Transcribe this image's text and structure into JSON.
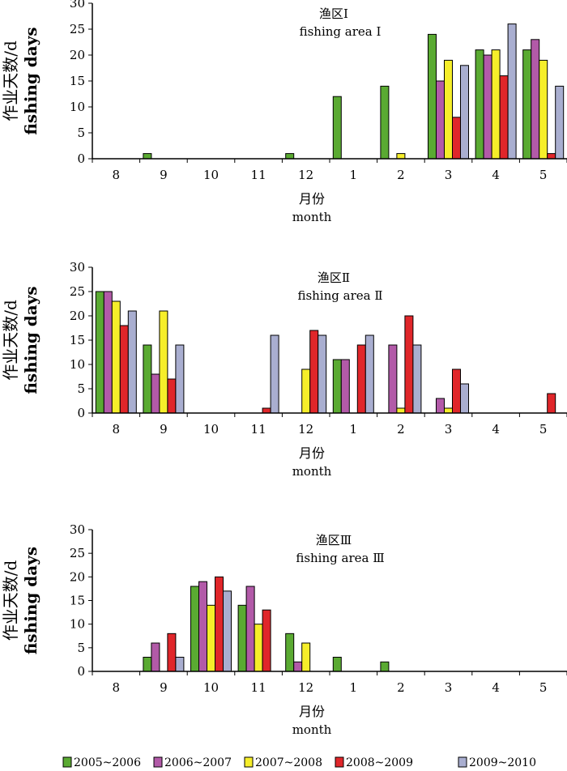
{
  "chart_data": [
    {
      "type": "bar",
      "title": "渔区Ⅰ",
      "subtitle": "fishing area Ⅰ",
      "ylabel_cn": "作业天数/d",
      "ylabel_en": "fishing days",
      "xlabel_cn": "月份",
      "xlabel_en": "month",
      "ylim": [
        0,
        30
      ],
      "yticks": [
        0,
        5,
        10,
        15,
        20,
        25,
        30
      ],
      "categories": [
        "8",
        "9",
        "10",
        "11",
        "12",
        "1",
        "2",
        "3",
        "4",
        "5"
      ],
      "series": [
        {
          "name": "2005~2006",
          "values": [
            0,
            1,
            0,
            0,
            1,
            12,
            14,
            24,
            21,
            21
          ]
        },
        {
          "name": "2006~2007",
          "values": [
            0,
            0,
            0,
            0,
            0,
            0,
            0,
            15,
            20,
            23
          ]
        },
        {
          "name": "2007~2008",
          "values": [
            0,
            0,
            0,
            0,
            0,
            0,
            1,
            19,
            21,
            19
          ]
        },
        {
          "name": "2008~2009",
          "values": [
            0,
            0,
            0,
            0,
            0,
            0,
            0,
            8,
            16,
            1
          ]
        },
        {
          "name": "2009~2010",
          "values": [
            0,
            0,
            0,
            0,
            0,
            0,
            0,
            18,
            26,
            14
          ]
        }
      ]
    },
    {
      "type": "bar",
      "title": "渔区Ⅱ",
      "subtitle": "fishing area Ⅱ",
      "ylabel_cn": "作业天数/d",
      "ylabel_en": "fishing days",
      "xlabel_cn": "月份",
      "xlabel_en": "month",
      "ylim": [
        0,
        30
      ],
      "yticks": [
        0,
        5,
        10,
        15,
        20,
        25,
        30
      ],
      "categories": [
        "8",
        "9",
        "10",
        "11",
        "12",
        "1",
        "2",
        "3",
        "4",
        "5"
      ],
      "series": [
        {
          "name": "2005~2006",
          "values": [
            25,
            14,
            0,
            0,
            0,
            11,
            0,
            0,
            0,
            0
          ]
        },
        {
          "name": "2006~2007",
          "values": [
            25,
            8,
            0,
            0,
            0,
            11,
            14,
            3,
            0,
            0
          ]
        },
        {
          "name": "2007~2008",
          "values": [
            23,
            21,
            0,
            0,
            9,
            0,
            1,
            1,
            0,
            0
          ]
        },
        {
          "name": "2008~2009",
          "values": [
            18,
            7,
            0,
            1,
            17,
            14,
            20,
            9,
            0,
            4
          ]
        },
        {
          "name": "2009~2010",
          "values": [
            21,
            14,
            0,
            16,
            16,
            16,
            14,
            6,
            0,
            0
          ]
        }
      ]
    },
    {
      "type": "bar",
      "title": "渔区Ⅲ",
      "subtitle": "fishing area Ⅲ",
      "ylabel_cn": "作业天数/d",
      "ylabel_en": "fishing days",
      "xlabel_cn": "月份",
      "xlabel_en": "month",
      "ylim": [
        0,
        30
      ],
      "yticks": [
        0,
        5,
        10,
        15,
        20,
        25,
        30
      ],
      "categories": [
        "8",
        "9",
        "10",
        "11",
        "12",
        "1",
        "2",
        "3",
        "4",
        "5"
      ],
      "series": [
        {
          "name": "2005~2006",
          "values": [
            0,
            3,
            18,
            14,
            8,
            3,
            2,
            0,
            0,
            0
          ]
        },
        {
          "name": "2006~2007",
          "values": [
            0,
            6,
            19,
            18,
            2,
            0,
            0,
            0,
            0,
            0
          ]
        },
        {
          "name": "2007~2008",
          "values": [
            0,
            0,
            14,
            10,
            6,
            0,
            0,
            0,
            0,
            0
          ]
        },
        {
          "name": "2008~2009",
          "values": [
            0,
            8,
            20,
            13,
            0,
            0,
            0,
            0,
            0,
            0
          ]
        },
        {
          "name": "2009~2010",
          "values": [
            0,
            3,
            17,
            0,
            0,
            0,
            0,
            0,
            0,
            0
          ]
        }
      ]
    }
  ],
  "legend": {
    "position": "bottom",
    "items": [
      {
        "label": "2005~2006",
        "color": "#5aaa32"
      },
      {
        "label": "2006~2007",
        "color": "#b25aa8"
      },
      {
        "label": "2007~2008",
        "color": "#f6ee2a"
      },
      {
        "label": "2008~2009",
        "color": "#e0262a"
      },
      {
        "label": "2009~2010",
        "color": "#a9aed0"
      }
    ]
  }
}
